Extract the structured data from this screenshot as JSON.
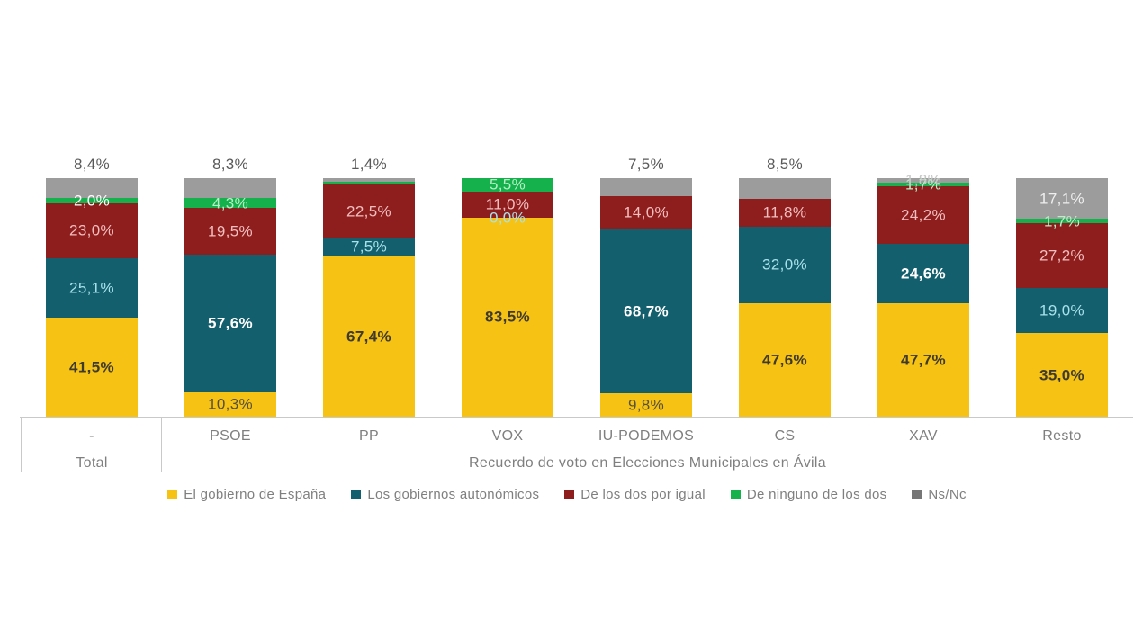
{
  "chart_data": {
    "type": "bar",
    "stacked": true,
    "percent_stacked": true,
    "unit": "%",
    "ylim": [
      0,
      100
    ],
    "grid": false,
    "legend_position": "bottom",
    "categories": [
      "-",
      "PSOE",
      "PP",
      "VOX",
      "IU-PODEMOS",
      "CS",
      "XAV",
      "Resto"
    ],
    "group_labels": {
      "total": "Total",
      "rest": "Recuerdo de voto en Elecciones Municipales en Ávila"
    },
    "series": [
      {
        "name": "El gobierno de España",
        "color": "#F6C214",
        "values": [
          41.5,
          10.3,
          67.4,
          83.5,
          9.8,
          47.6,
          47.7,
          35.0
        ],
        "labels": [
          "41,5%",
          "10,3%",
          "67,4%",
          "83,5%",
          "9,8%",
          "47,6%",
          "47,7%",
          "35,0%"
        ],
        "bold": [
          true,
          false,
          true,
          true,
          false,
          true,
          true,
          true
        ],
        "label_color": "#55503D",
        "label_color_bold": "#3E3A2E"
      },
      {
        "name": "Los gobiernos autonómicos",
        "color": "#135F6D",
        "values": [
          25.1,
          57.6,
          7.5,
          0.0,
          68.7,
          32.0,
          24.6,
          19.0
        ],
        "labels": [
          "25,1%",
          "57,6%",
          "7,5%",
          "0,0%",
          "68,7%",
          "32,0%",
          "24,6%",
          "19,0%"
        ],
        "bold": [
          false,
          true,
          false,
          false,
          true,
          false,
          true,
          false
        ],
        "label_color": "#A9E2EA",
        "label_color_bold": "#FFFFFF"
      },
      {
        "name": "De los dos por igual",
        "color": "#8E1E1E",
        "values": [
          23.0,
          19.5,
          22.5,
          11.0,
          14.0,
          11.8,
          24.2,
          27.2
        ],
        "labels": [
          "23,0%",
          "19,5%",
          "22,5%",
          "11,0%",
          "14,0%",
          "11,8%",
          "24,2%",
          "27,2%"
        ],
        "bold": [
          false,
          false,
          false,
          false,
          false,
          false,
          false,
          false
        ],
        "label_color": "#F3BEBE"
      },
      {
        "name": "De ninguno de los dos",
        "color": "#15B14C",
        "values": [
          2.0,
          4.3,
          1.2,
          5.5,
          0.0,
          0.0,
          1.7,
          1.7
        ],
        "labels": [
          "2,0%",
          "4,3%",
          null,
          "5,5%",
          null,
          null,
          "1,7%",
          "1,7%"
        ],
        "bold": [
          false,
          false,
          false,
          false,
          false,
          false,
          false,
          false
        ],
        "label_color": "#B8EFC6",
        "label_color_overrides": {
          "0": "#FFFFFF"
        }
      },
      {
        "name": "Ns/Nc",
        "color": "#9C9C9C",
        "legend_swatch_color": "#767676",
        "values": [
          8.4,
          8.3,
          1.4,
          0.0,
          7.5,
          8.5,
          1.8,
          17.1
        ],
        "labels": [
          "8,4%",
          "8,3%",
          "1,4%",
          null,
          "7,5%",
          "8,5%",
          "1,8%",
          "17,1%"
        ],
        "bold": [
          false,
          false,
          false,
          false,
          false,
          false,
          false,
          false
        ],
        "placement": [
          "above",
          "above",
          "above",
          null,
          "above",
          "above",
          "center",
          "center"
        ],
        "label_color": "#EFEFEF",
        "above_label_color": "#595959",
        "label_color_overrides": {
          "6": "#C6C6C6"
        }
      }
    ]
  }
}
